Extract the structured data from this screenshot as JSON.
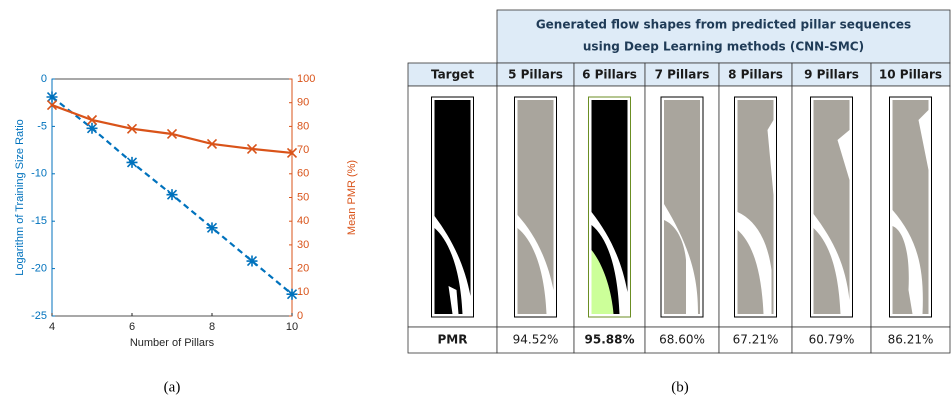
{
  "chart_data": {
    "type": "line",
    "xlabel": "Number of Pillars",
    "ylabel": "Logarithm of Training Size Ratio",
    "y2label": "Mean PMR (%)",
    "x": [
      4,
      5,
      6,
      7,
      8,
      9,
      10
    ],
    "series": [
      {
        "color": "#0072bd",
        "values": [
          -1.9,
          -5.2,
          -8.8,
          -12.2,
          -15.7,
          -19.2,
          -22.7
        ],
        "line_style": "dashed",
        "marker": "asterisk"
      },
      {
        "color": "#d95319",
        "values": [
          89,
          82.7,
          79,
          76.8,
          72.6,
          70.5,
          68.8
        ],
        "axis": "y2",
        "line_style": "solid",
        "marker": "cross"
      }
    ],
    "xlim": [
      4,
      10
    ],
    "xticks": [
      4,
      6,
      8,
      10
    ],
    "ylim": [
      -25,
      0
    ],
    "yticks": [
      0,
      -5,
      -10,
      -15,
      -20,
      -25
    ],
    "y2lim": [
      0,
      100
    ],
    "y2ticks": [
      0,
      10,
      20,
      30,
      40,
      50,
      60,
      70,
      80,
      90,
      100
    ],
    "grid": false
  },
  "table": {
    "title_lines": [
      "Generated flow shapes from predicted pillar sequences",
      "using Deep Learning methods (CNN-SMC)"
    ],
    "columns": [
      "Target",
      "5 Pillars",
      "6 Pillars",
      "7 Pillars",
      "8 Pillars",
      "9 Pillars",
      "10 Pillars"
    ],
    "row_label": "PMR",
    "pmr": [
      "94.52%",
      "95.88%",
      "68.60%",
      "67.21%",
      "60.79%",
      "86.21%"
    ],
    "pmr_bold": 1
  },
  "captions": [
    "(a)",
    "(b)"
  ]
}
